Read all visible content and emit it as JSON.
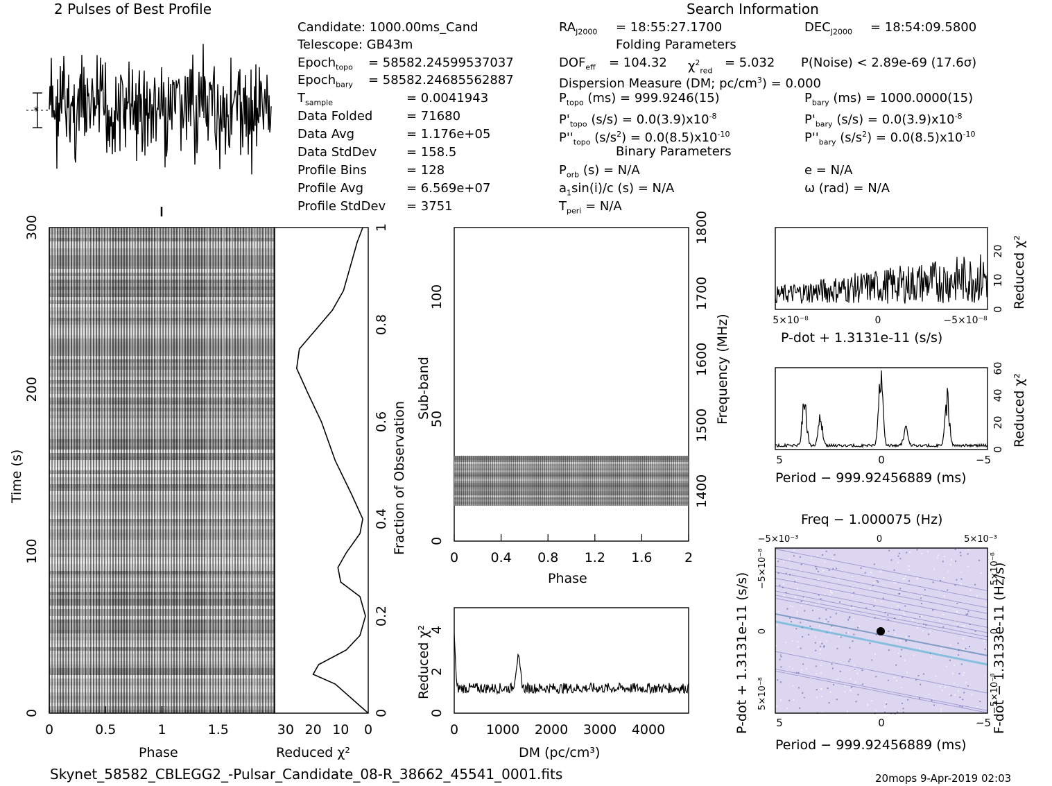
{
  "header": {
    "profile_title": "2 Pulses of Best Profile",
    "search_title": "Search Information",
    "folding_title": "Folding Parameters",
    "binary_title": "Binary Parameters"
  },
  "info": {
    "candidate": "Candidate:  1000.00ms_Cand",
    "telescope": "Telescope:  GB43m",
    "epoch_topo": "= 58582.24599537037",
    "epoch_bary": "= 58582.24685562887",
    "t_sample": "=   0.0041943",
    "data_folded_label": "Data Folded",
    "data_folded": "=   71680",
    "data_avg_label": "Data Avg",
    "data_avg": "=   1.176e+05",
    "data_std_label": "Data StdDev",
    "data_std": "=   158.5",
    "profile_bins_label": "Profile Bins",
    "profile_bins": "=   128",
    "profile_avg_label": "Profile Avg",
    "profile_avg": "=   6.569e+07",
    "profile_std_label": "Profile StdDev",
    "profile_std": "=   3751"
  },
  "search": {
    "ra": "= 18:55:27.1700",
    "dec": "= 18:54:09.5800",
    "dof": "= 104.32",
    "chi2": "= 5.032",
    "pnoise": "P(Noise) < 2.89e-69   (17.6σ)",
    "dm": "Dispersion Measure (DM; pc/cm",
    "dm_val": ") = 0.000",
    "p_topo": "(ms) =  999.9246(15)",
    "p_bary": "(ms) =  1000.0000(15)",
    "pd_topo": "(s/s) = 0.0(3.9)x10",
    "pd_bary": "(s/s) = 0.0(3.9)x10",
    "pd_exp": "-8",
    "pdd_topo": "(s/s",
    "pdd_bary": "(s/s",
    "pdd_rest": ") = 0.0(8.5)x10",
    "pdd_exp": "-10",
    "porb": "(s) = N/A",
    "ecc": "e = N/A",
    "asini": "a",
    "asini_rest": "sin(i)/c (s) = N/A",
    "omega": "ω (rad) = N/A",
    "tperi": "= N/A"
  },
  "footer": {
    "filename": "Skynet_58582_CBLEGG2_-Pulsar_Candidate_08-R_38662_45541_0001.fits",
    "stamp": "20mops  9-Apr-2019 02:03"
  },
  "chart_data": [
    {
      "type": "line",
      "name": "profile",
      "x": [
        0,
        2
      ],
      "xlabel": "",
      "ylabel": ""
    },
    {
      "type": "heatmap",
      "xlabel": "Phase",
      "ylabel": "Time (s)",
      "xlim": [
        0,
        2
      ],
      "ylim": [
        0,
        300
      ],
      "xticks": [
        "0",
        "0.5",
        "1",
        "1.5"
      ],
      "yticks": [
        "0",
        "100",
        "200",
        "300"
      ]
    },
    {
      "type": "line",
      "xlabel": "Reduced χ²",
      "ylabel": "Fraction of Observation",
      "xticks": [
        "30",
        "20",
        "10",
        "0"
      ],
      "yticks": [
        "0",
        "0.2",
        "0.4",
        "0.6",
        "0.8",
        "1"
      ],
      "points": [
        [
          0,
          0
        ],
        [
          4,
          0.02
        ],
        [
          12,
          0.06
        ],
        [
          20,
          0.08
        ],
        [
          18,
          0.1
        ],
        [
          8,
          0.13
        ],
        [
          3,
          0.16
        ],
        [
          1,
          0.2
        ],
        [
          3,
          0.24
        ],
        [
          10,
          0.27
        ],
        [
          11,
          0.3
        ],
        [
          8,
          0.33
        ],
        [
          3,
          0.37
        ],
        [
          2,
          0.4
        ],
        [
          6,
          0.45
        ],
        [
          12,
          0.52
        ],
        [
          17,
          0.6
        ],
        [
          22,
          0.66
        ],
        [
          26,
          0.71
        ],
        [
          25,
          0.75
        ],
        [
          19,
          0.79
        ],
        [
          13,
          0.83
        ],
        [
          9,
          0.87
        ],
        [
          6,
          0.93
        ],
        [
          4,
          0.97
        ],
        [
          2,
          1
        ]
      ]
    },
    {
      "type": "heatmap",
      "xlabel": "Phase",
      "ylabel": "Sub-band",
      "y2label": "Frequency (MHz)",
      "xticks": [
        "0",
        "0.4",
        "0.8",
        "1.2",
        "1.6",
        "2"
      ],
      "yticks": [
        "0",
        "50",
        "100"
      ],
      "y2ticks": [
        "1400",
        "1500",
        "1600",
        "1700",
        "1800"
      ]
    },
    {
      "type": "line",
      "xlabel": "DM (pc/cm³)",
      "ylabel": "Reduced χ²",
      "xticks": [
        "0",
        "1000",
        "2000",
        "3000",
        "4000"
      ],
      "yticks": [
        "0",
        "2",
        "4"
      ]
    },
    {
      "type": "line",
      "xlabel": "P-dot + 1.3131e-11 (s/s)",
      "ylabel": "Reduced χ²",
      "xticks": [
        "5×10⁻⁸",
        "0",
        "−5×10⁻⁸"
      ],
      "yticks": [
        "0",
        "10",
        "20"
      ]
    },
    {
      "type": "line",
      "xlabel": "Period − 999.92456889 (ms)",
      "ylabel": "Reduced χ²",
      "xticks": [
        "5",
        "0",
        "−5"
      ],
      "yticks": [
        "0",
        "20",
        "40",
        "60"
      ]
    },
    {
      "type": "heatmap",
      "xlabel": "Period − 999.92456889 (ms)",
      "x2label": "Freq − 1.000075 (Hz)",
      "ylabel": "P-dot + 1.3131e-11 (s/s)",
      "y2label": "F-dot − 1.3133e-11 (Hz/s)",
      "xticks": [
        "5",
        "0",
        "−5"
      ],
      "x2ticks": [
        "−5×10⁻³",
        "0",
        "5×10⁻³"
      ],
      "yticks": [
        "5×10⁻⁸",
        "0",
        "−5×10⁻⁸"
      ],
      "y2ticks": [
        "−5×10⁻⁸",
        "0",
        "5×10⁻⁸"
      ]
    }
  ]
}
